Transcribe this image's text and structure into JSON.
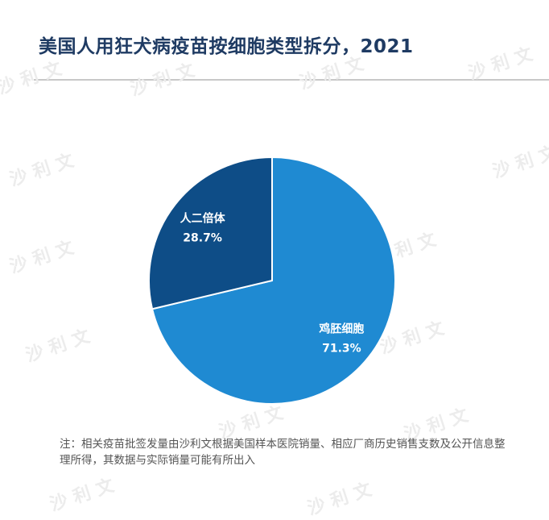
{
  "title": "美国人用狂犬病疫苗按细胞类型拆分，2021",
  "watermark": "沙利文",
  "chart_data": {
    "type": "pie",
    "title": "美国人用狂犬病疫苗按细胞类型拆分，2021",
    "slices": [
      {
        "label": "鸡胚细胞",
        "value": 71.3,
        "value_label": "71.3%",
        "color": "#1f8ad2"
      },
      {
        "label": "人二倍体",
        "value": 28.7,
        "value_label": "28.7%",
        "color": "#0e4d87"
      }
    ]
  },
  "note": "注：相关疫苗批签发量由沙利文根据美国样本医院销量、相应厂商历史销售支数及公开信息整理所得，其数据与实际销量可能有所出入"
}
